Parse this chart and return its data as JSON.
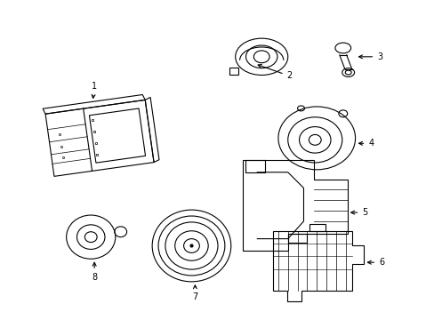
{
  "background_color": "#ffffff",
  "line_color": "#000000",
  "fig_width": 4.89,
  "fig_height": 3.6,
  "dpi": 100,
  "lw": 0.8,
  "fontsize": 7
}
